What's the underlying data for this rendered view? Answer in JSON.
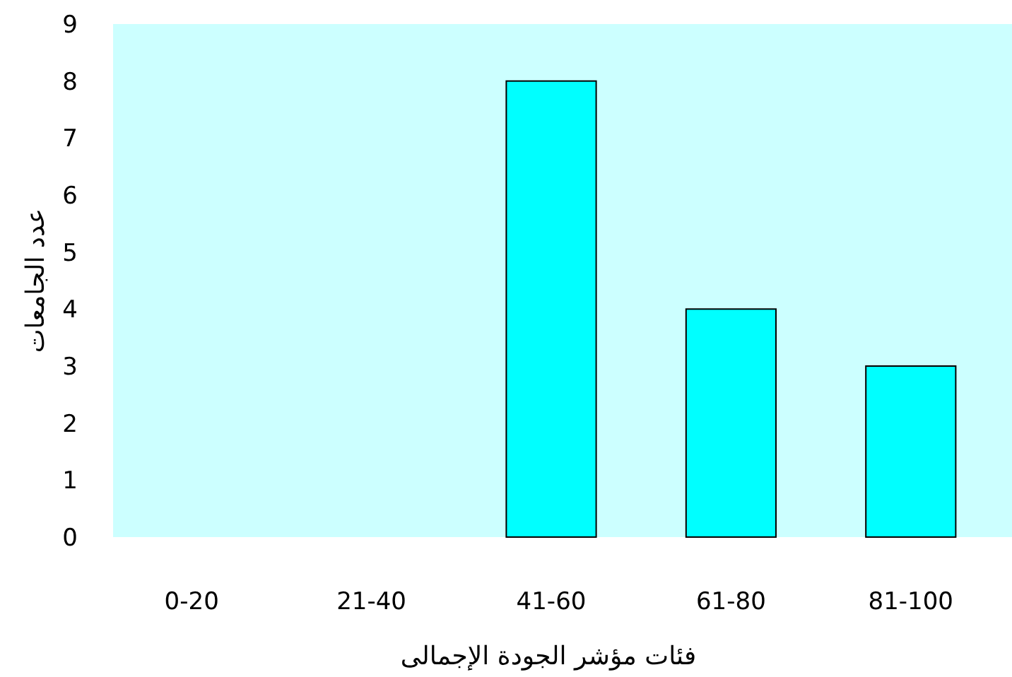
{
  "chart_data": {
    "type": "bar",
    "xlabel": "فئات مؤشر الجودة الإجمالى",
    "ylabel": "عدد الجامعات",
    "categories": [
      "0-20",
      "21-40",
      "41-60",
      "61-80",
      "81-100"
    ],
    "values": [
      0,
      0,
      8,
      4,
      3
    ],
    "color": "#00ffff",
    "ylim": [
      0,
      9
    ],
    "yticks": [
      0,
      1,
      2,
      3,
      4,
      5,
      6,
      7,
      8,
      9
    ],
    "grid": false
  }
}
